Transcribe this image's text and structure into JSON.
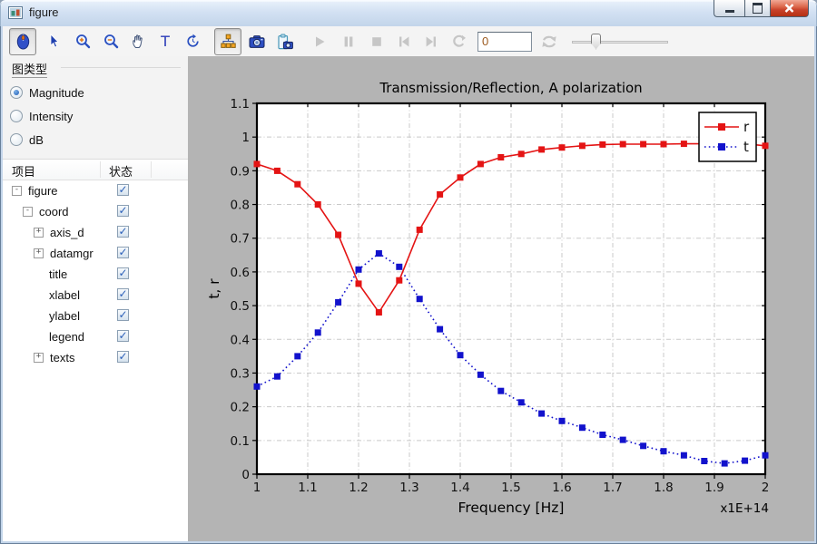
{
  "window": {
    "title": "figure",
    "controls": [
      "minimize",
      "maximize",
      "close"
    ]
  },
  "toolbar": {
    "frame_number": "0",
    "tools": [
      "mouse-mode",
      "select-cursor",
      "zoom-in",
      "zoom-out",
      "pan",
      "text-tool",
      "rotate",
      "scene-tree",
      "snapshot",
      "copy-snapshot",
      "play",
      "pause",
      "stop",
      "first-frame",
      "last-frame",
      "replay",
      "frame-number-input",
      "refresh",
      "speed-slider"
    ],
    "active_tools": [
      "mouse-mode",
      "scene-tree"
    ],
    "disabled_tools": [
      "play",
      "pause",
      "stop",
      "first-frame",
      "last-frame",
      "replay",
      "refresh"
    ]
  },
  "sidebar": {
    "chart_type": {
      "label": "图类型",
      "options": [
        {
          "label": "Magnitude",
          "selected": true
        },
        {
          "label": "Intensity",
          "selected": false
        },
        {
          "label": "dB",
          "selected": false
        }
      ]
    },
    "tree": {
      "columns": [
        "项目",
        "状态"
      ],
      "items": [
        {
          "label": "figure",
          "depth": 0,
          "toggle": "collapse",
          "checked": true
        },
        {
          "label": "coord",
          "depth": 1,
          "toggle": "collapse",
          "checked": true
        },
        {
          "label": "axis_d",
          "depth": 2,
          "toggle": "expand",
          "checked": true
        },
        {
          "label": "datamgr",
          "depth": 2,
          "toggle": "expand",
          "checked": true
        },
        {
          "label": "title",
          "depth": 2,
          "toggle": "none",
          "checked": true
        },
        {
          "label": "xlabel",
          "depth": 2,
          "toggle": "none",
          "checked": true
        },
        {
          "label": "ylabel",
          "depth": 2,
          "toggle": "none",
          "checked": true
        },
        {
          "label": "legend",
          "depth": 2,
          "toggle": "none",
          "checked": true
        },
        {
          "label": "texts",
          "depth": 2,
          "toggle": "expand",
          "checked": true
        }
      ]
    }
  },
  "chart_data": {
    "type": "line",
    "title": "Transmission/Reflection, A polarization",
    "xlabel": "Frequency [Hz]",
    "ylabel": "t, r",
    "x_multiplier_label": "x1E+14",
    "xlim": [
      1,
      2
    ],
    "ylim": [
      0,
      1.1
    ],
    "xticks": [
      1,
      1.1,
      1.2,
      1.3,
      1.4,
      1.5,
      1.6,
      1.7,
      1.8,
      1.9,
      2
    ],
    "xtick_labels": [
      "1",
      "1.1",
      "1.2",
      "1.3",
      "1.4",
      "1.5",
      "1.6",
      "1.7",
      "1.8",
      "1.9",
      "2"
    ],
    "yticks": [
      0,
      0.1,
      0.2,
      0.3,
      0.4,
      0.5,
      0.6,
      0.7,
      0.8,
      0.9,
      1,
      1.1
    ],
    "ytick_labels": [
      "0",
      "0.1",
      "0.2",
      "0.3",
      "0.4",
      "0.5",
      "0.6",
      "0.7",
      "0.8",
      "0.9",
      "1",
      "1.1"
    ],
    "grid": true,
    "legend_position": "top-right",
    "x": [
      1.0,
      1.04,
      1.08,
      1.12,
      1.16,
      1.2,
      1.24,
      1.28,
      1.32,
      1.36,
      1.4,
      1.44,
      1.48,
      1.52,
      1.56,
      1.6,
      1.64,
      1.68,
      1.72,
      1.76,
      1.8,
      1.84,
      1.88,
      1.92,
      1.96,
      2.0
    ],
    "series": [
      {
        "name": "r",
        "color": "#e41414",
        "line": "solid",
        "marker": "square",
        "values": [
          0.92,
          0.9,
          0.86,
          0.8,
          0.71,
          0.565,
          0.48,
          0.575,
          0.725,
          0.83,
          0.88,
          0.92,
          0.94,
          0.95,
          0.963,
          0.969,
          0.974,
          0.978,
          0.979,
          0.979,
          0.979,
          0.98,
          0.98,
          0.98,
          0.98,
          0.974
        ]
      },
      {
        "name": "t",
        "color": "#1212cc",
        "line": "dotted",
        "marker": "square",
        "values": [
          0.26,
          0.29,
          0.35,
          0.42,
          0.51,
          0.607,
          0.655,
          0.615,
          0.52,
          0.43,
          0.353,
          0.295,
          0.247,
          0.213,
          0.18,
          0.158,
          0.138,
          0.117,
          0.102,
          0.084,
          0.068,
          0.056,
          0.039,
          0.032,
          0.04,
          0.056
        ]
      }
    ]
  }
}
